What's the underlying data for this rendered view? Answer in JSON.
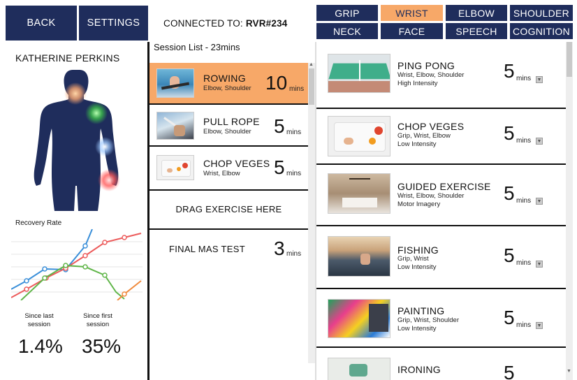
{
  "nav": {
    "back": "BACK",
    "settings": "SETTINGS"
  },
  "connection": {
    "label": "CONNECTED TO:",
    "device": "RVR#234"
  },
  "patient": {
    "name": "KATHERINE PERKINS"
  },
  "recovery": {
    "title": "Recovery Rate",
    "since_last_label": "Since last session",
    "since_first_label": "Since first session",
    "since_last_value": "1.4%",
    "since_first_value": "35%",
    "colors": {
      "blue": "#3a8fd9",
      "red": "#ec5b5b",
      "green": "#5fb548",
      "orange": "#f08a3c"
    }
  },
  "session": {
    "title": "Session List - 23mins",
    "items": [
      {
        "name": "ROWING",
        "sub": "Elbow, Shoulder",
        "value": "10",
        "unit": "mins"
      },
      {
        "name": "PULL ROPE",
        "sub": "Elbow, Shoulder",
        "value": "5",
        "unit": "mins"
      },
      {
        "name": "CHOP VEGES",
        "sub": "Wrist, Elbow",
        "value": "5",
        "unit": "mins"
      }
    ],
    "drag": "DRAG EXERCISE HERE",
    "final": {
      "name": "FINAL MAS TEST",
      "value": "3",
      "unit": "mins"
    }
  },
  "tabs": [
    "GRIP",
    "WRIST",
    "ELBOW",
    "SHOULDER",
    "NECK",
    "FACE",
    "SPEECH",
    "COGNITION"
  ],
  "active_tab": "WRIST",
  "library": [
    {
      "name": "PING PONG",
      "sub": "Wrist, Elbow, Shoulder",
      "intensity": "High Intensity",
      "value": "5",
      "unit": "mins"
    },
    {
      "name": "CHOP VEGES",
      "sub": "Grip, Wrist, Elbow",
      "intensity": "Low Intensity",
      "value": "5",
      "unit": "mins"
    },
    {
      "name": "GUIDED EXERCISE",
      "sub": "Wrist, Elbow, Shoulder",
      "intensity": "Motor Imagery",
      "value": "5",
      "unit": "mins"
    },
    {
      "name": "FISHING",
      "sub": "Grip, Wrist",
      "intensity": "Low Intensity",
      "value": "5",
      "unit": "mins"
    },
    {
      "name": "PAINTING",
      "sub": "Grip, Wrist, Shoulder",
      "intensity": "Low Intensity",
      "value": "5",
      "unit": "mins"
    },
    {
      "name": "IRONING",
      "sub": "",
      "intensity": "",
      "value": "5",
      "unit": ""
    }
  ],
  "icons": {
    "dropdown": "chevron-down-icon",
    "scroll_up": "caret-up-icon",
    "scroll_down": "caret-down-icon"
  }
}
